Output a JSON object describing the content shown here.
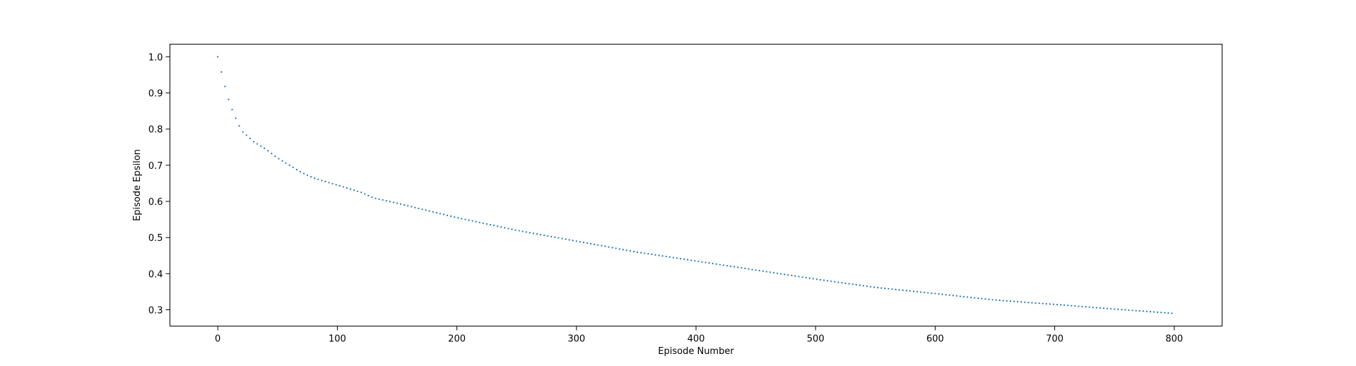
{
  "chart_data": {
    "type": "scatter",
    "title": "",
    "xlabel": "Episode Number",
    "ylabel": "Episode Epsilon",
    "xlim": [
      -40,
      840
    ],
    "ylim": [
      0.255,
      1.035
    ],
    "xticks": [
      0,
      100,
      200,
      300,
      400,
      500,
      600,
      700,
      800
    ],
    "xtick_labels": [
      "0",
      "100",
      "200",
      "300",
      "400",
      "500",
      "600",
      "700",
      "800"
    ],
    "yticks": [
      0.3,
      0.4,
      0.5,
      0.6,
      0.7,
      0.8,
      0.9,
      1.0
    ],
    "ytick_labels": [
      "0.3",
      "0.4",
      "0.5",
      "0.6",
      "0.7",
      "0.8",
      "0.9",
      "1.0"
    ],
    "grid": false,
    "series_color": "#1f77b4",
    "series": [
      {
        "x": [
          0,
          5,
          10,
          15,
          20,
          25,
          30,
          40,
          50,
          60,
          70,
          80,
          100,
          120,
          130,
          150,
          200,
          250,
          300,
          350,
          400,
          450,
          500,
          550,
          600,
          650,
          700,
          750,
          800
        ],
        "y": [
          1.0,
          0.93,
          0.87,
          0.83,
          0.795,
          0.78,
          0.765,
          0.745,
          0.72,
          0.7,
          0.68,
          0.665,
          0.645,
          0.625,
          0.61,
          0.595,
          0.555,
          0.52,
          0.49,
          0.46,
          0.435,
          0.41,
          0.385,
          0.362,
          0.345,
          0.327,
          0.315,
          0.302,
          0.29
        ]
      }
    ]
  }
}
